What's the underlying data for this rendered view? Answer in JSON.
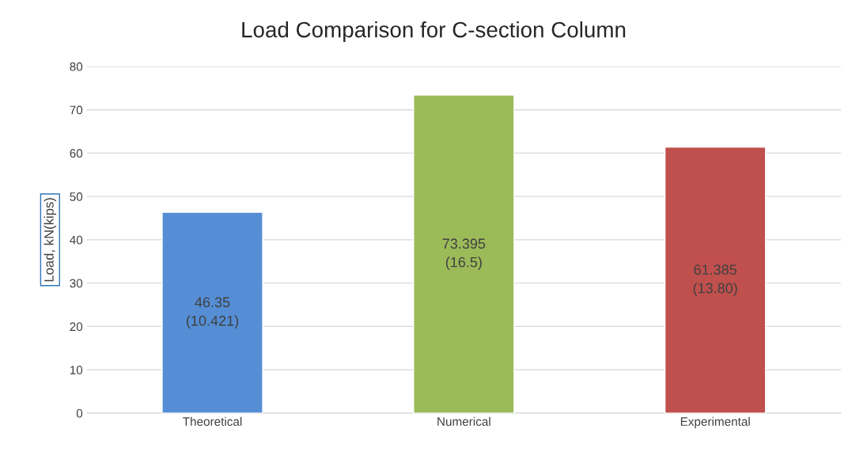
{
  "chart_data": {
    "type": "bar",
    "title": "Load Comparison for C-section Column",
    "ylabel": "Load, kN(kips)",
    "categories": [
      "Theoretical",
      "Numerical",
      "Experimental"
    ],
    "values": [
      46.35,
      73.395,
      61.385
    ],
    "colors": [
      "#558ed5",
      "#9bbb59",
      "#c0504d"
    ],
    "value_labels": [
      "46.35\n(10.421)",
      "73.395\n(16.5)",
      "61.385\n(13.80)"
    ],
    "ylim": [
      0,
      80
    ],
    "yticks": [
      0,
      10,
      20,
      30,
      40,
      50,
      60,
      70,
      80
    ],
    "grid": "y"
  }
}
